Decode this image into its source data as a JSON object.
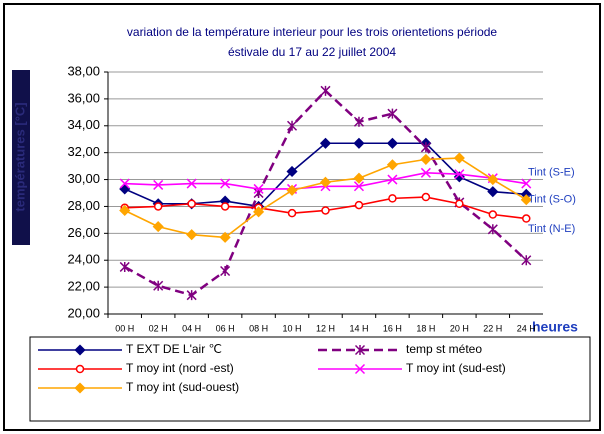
{
  "chart_data": {
    "type": "line",
    "title": "variation de la température interieur pour les trois orientetions période",
    "subtitle": "éstivale du 17 au 22 juillet 2004",
    "y_label": "températures [°C]",
    "x_label": "heures",
    "categories": [
      "00 H",
      "02 H",
      "04 H",
      "06 H",
      "08 H",
      "10 H",
      "12 H",
      "14 H",
      "16 H",
      "18 H",
      "20 H",
      "22 H",
      "24 H"
    ],
    "series": [
      {
        "name": "T EXT DE L'air ℃",
        "color": "#000080",
        "marker": "diamond",
        "dash": false,
        "values": [
          29.3,
          28.2,
          28.2,
          28.4,
          28.0,
          30.6,
          32.7,
          32.7,
          32.7,
          32.7,
          30.2,
          29.1,
          28.9
        ]
      },
      {
        "name": "temp st méteo",
        "color": "#800080",
        "marker": "star",
        "dash": true,
        "values": [
          23.5,
          22.1,
          21.4,
          23.2,
          29.0,
          34.0,
          36.6,
          34.3,
          34.9,
          32.4,
          28.3,
          26.3,
          24.0
        ]
      },
      {
        "name": "T moy int (nord -est)",
        "color": "#ff0000",
        "marker": "circle",
        "dash": false,
        "values": [
          27.9,
          28.0,
          28.2,
          28.0,
          27.9,
          27.5,
          27.7,
          28.1,
          28.6,
          28.7,
          28.2,
          27.4,
          27.1
        ]
      },
      {
        "name": "T moy int (sud-est)",
        "color": "#ff00ff",
        "marker": "x",
        "dash": false,
        "values": [
          29.7,
          29.6,
          29.7,
          29.7,
          29.3,
          29.3,
          29.5,
          29.5,
          30.0,
          30.5,
          30.4,
          30.1,
          29.7
        ]
      },
      {
        "name": "T moy int (sud-ouest)",
        "color": "#ffa500",
        "marker": "diamond",
        "dash": false,
        "values": [
          27.7,
          26.5,
          25.9,
          25.7,
          27.6,
          29.2,
          29.8,
          30.1,
          31.1,
          31.5,
          31.6,
          30.0,
          28.5
        ]
      }
    ],
    "ylim": [
      20,
      38
    ],
    "yticks": [
      {
        "value": 20,
        "label": "20,00"
      },
      {
        "value": 22,
        "label": "22,00"
      },
      {
        "value": 24,
        "label": "24,00"
      },
      {
        "value": 26,
        "label": "26,00"
      },
      {
        "value": 28,
        "label": "28,00"
      },
      {
        "value": 30,
        "label": "30,00"
      },
      {
        "value": 32,
        "label": "32,00"
      },
      {
        "value": 34,
        "label": "34,00"
      },
      {
        "value": 36,
        "label": "36,00"
      },
      {
        "value": 38,
        "label": "38,00"
      }
    ],
    "grid": true,
    "annotations": [
      {
        "text": "Tint (S-E)",
        "value": 30.5
      },
      {
        "text": "Tint (S-O)",
        "value": 28.5
      },
      {
        "text": "Tint (N-E)",
        "value": 26.3
      }
    ]
  }
}
